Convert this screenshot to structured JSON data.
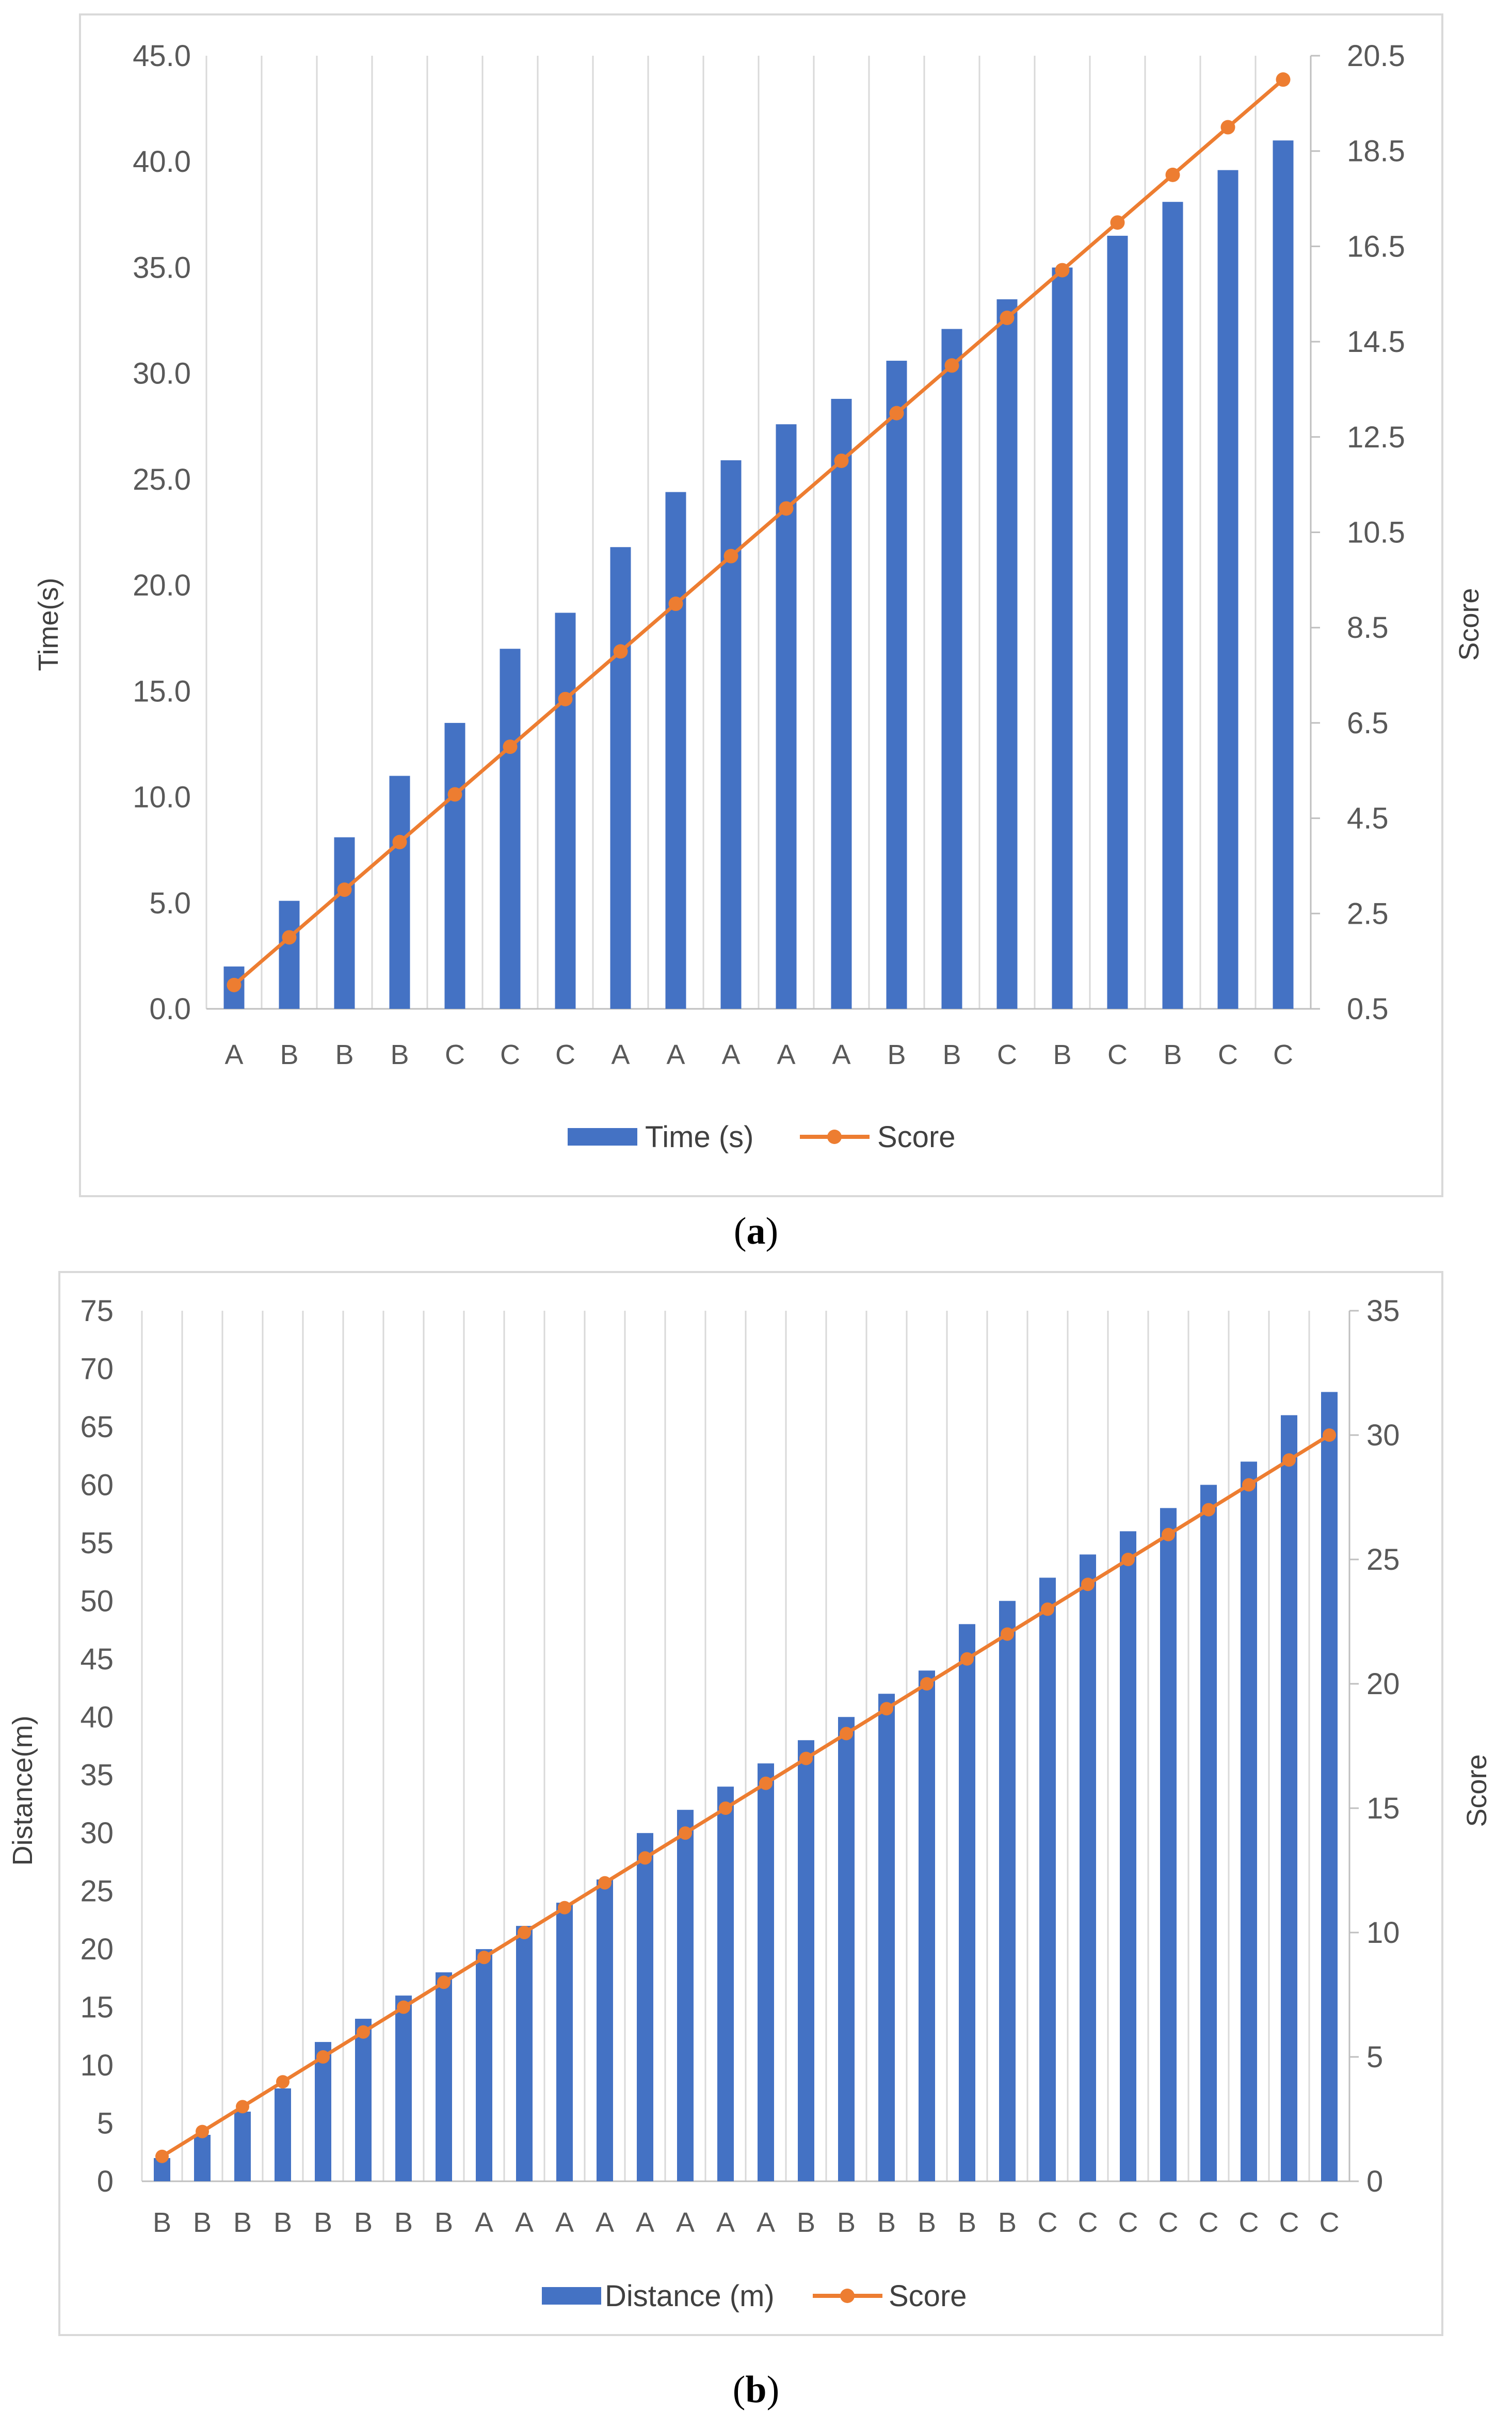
{
  "colors": {
    "bar": "#4472C4",
    "line": "#ED7D31",
    "grid": "#D9D9D9",
    "axis": "#BFBFBF",
    "frame": "#D9D9D9"
  },
  "captions": {
    "a": "a",
    "b": "b"
  },
  "chart_data": [
    {
      "type": "bar",
      "panel": "a",
      "categories": [
        "A",
        "B",
        "B",
        "B",
        "C",
        "C",
        "C",
        "A",
        "A",
        "A",
        "A",
        "A",
        "B",
        "B",
        "C",
        "B",
        "C",
        "B",
        "C",
        "C"
      ],
      "series": [
        {
          "name": "Time (s)",
          "type": "bar",
          "axis": "left",
          "values": [
            2.0,
            5.1,
            8.1,
            11.0,
            13.5,
            17.0,
            18.7,
            21.8,
            24.4,
            25.9,
            27.6,
            28.8,
            30.6,
            32.1,
            33.5,
            35.0,
            36.5,
            38.1,
            39.6,
            41.0
          ]
        },
        {
          "name": "Score",
          "type": "line",
          "axis": "right",
          "values": [
            1,
            2,
            3,
            4,
            5,
            6,
            7,
            8,
            9,
            10,
            11,
            12,
            13,
            14,
            15,
            16,
            17,
            18,
            19,
            20
          ]
        }
      ],
      "ylabel": "Time(s)",
      "y2label": "Score",
      "ylim": [
        0,
        45
      ],
      "yticks": [
        0,
        5,
        10,
        15,
        20,
        25,
        30,
        35,
        40,
        45
      ],
      "ytick_labels": [
        "0.0",
        "5.0",
        "10.0",
        "15.0",
        "20.0",
        "25.0",
        "30.0",
        "35.0",
        "40.0",
        "45.0"
      ],
      "y2lim": [
        0.5,
        20.5
      ],
      "y2ticks": [
        0.5,
        2.5,
        4.5,
        6.5,
        8.5,
        10.5,
        12.5,
        14.5,
        16.5,
        18.5,
        20.5
      ],
      "y2tick_labels": [
        "0.5",
        "2.5",
        "4.5",
        "6.5",
        "8.5",
        "10.5",
        "12.5",
        "14.5",
        "16.5",
        "18.5",
        "20.5"
      ],
      "grid": "vertical",
      "legend": "bottom"
    },
    {
      "type": "bar",
      "panel": "b",
      "categories": [
        "B",
        "B",
        "B",
        "B",
        "B",
        "B",
        "B",
        "B",
        "A",
        "A",
        "A",
        "A",
        "A",
        "A",
        "A",
        "A",
        "B",
        "B",
        "B",
        "B",
        "B",
        "B",
        "C",
        "C",
        "C",
        "C",
        "C",
        "C",
        "C",
        "C"
      ],
      "series": [
        {
          "name": "Distance (m)",
          "type": "bar",
          "axis": "left",
          "values": [
            2,
            4,
            6,
            8,
            12,
            14,
            16,
            18,
            20,
            22,
            24,
            26,
            30,
            32,
            34,
            36,
            38,
            40,
            42,
            44,
            48,
            50,
            52,
            54,
            56,
            58,
            60,
            62,
            66,
            68
          ]
        },
        {
          "name": "Score",
          "type": "line",
          "axis": "right",
          "values": [
            1,
            2,
            3,
            4,
            5,
            6,
            7,
            8,
            9,
            10,
            11,
            12,
            13,
            14,
            15,
            16,
            17,
            18,
            19,
            20,
            21,
            22,
            23,
            24,
            25,
            26,
            27,
            28,
            29,
            30
          ]
        }
      ],
      "ylabel": "Distance(m)",
      "y2label": "Score",
      "ylim": [
        0,
        75
      ],
      "yticks": [
        0,
        5,
        10,
        15,
        20,
        25,
        30,
        35,
        40,
        45,
        50,
        55,
        60,
        65,
        70,
        75
      ],
      "ytick_labels": [
        "0",
        "5",
        "10",
        "15",
        "20",
        "25",
        "30",
        "35",
        "40",
        "45",
        "50",
        "55",
        "60",
        "65",
        "70",
        "75"
      ],
      "y2lim": [
        0,
        35
      ],
      "y2ticks": [
        0,
        5,
        10,
        15,
        20,
        25,
        30,
        35
      ],
      "y2tick_labels": [
        "0",
        "5",
        "10",
        "15",
        "20",
        "25",
        "30",
        "35"
      ],
      "grid": "vertical",
      "legend": "bottom"
    }
  ]
}
